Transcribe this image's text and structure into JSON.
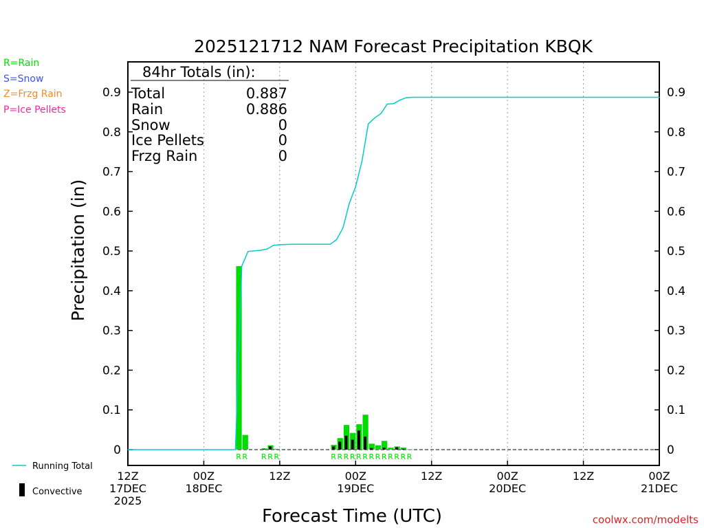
{
  "chart_data": {
    "type": "bar",
    "title": "2025121712 NAM Forecast Precipitation KBQK",
    "xlabel": "Forecast Time (UTC)",
    "ylabel": "Precipitation (in)",
    "ylim": [
      0,
      0.98
    ],
    "xlim_hours": [
      0,
      84
    ],
    "yticks": [
      0,
      0.1,
      0.2,
      0.3,
      0.4,
      0.5,
      0.6,
      0.7,
      0.8,
      0.9
    ],
    "ytick_labels": [
      "0",
      "0.1",
      "0.2",
      "0.3",
      "0.4",
      "0.5",
      "0.6",
      "0.7",
      "0.8",
      "0.9"
    ],
    "xticks": [
      {
        "hour": 0,
        "lines": [
          "12Z",
          "17DEC",
          "2025"
        ]
      },
      {
        "hour": 12,
        "lines": [
          "00Z",
          "18DEC"
        ]
      },
      {
        "hour": 24,
        "lines": [
          "12Z"
        ]
      },
      {
        "hour": 36,
        "lines": [
          "00Z",
          "19DEC"
        ]
      },
      {
        "hour": 48,
        "lines": [
          "12Z"
        ]
      },
      {
        "hour": 60,
        "lines": [
          "00Z",
          "20DEC"
        ]
      },
      {
        "hour": 72,
        "lines": [
          "12Z"
        ]
      },
      {
        "hour": 84,
        "lines": [
          "00Z",
          "21DEC"
        ]
      }
    ],
    "legend_ptypes": [
      {
        "label": "R=Rain",
        "color": "#00dc00"
      },
      {
        "label": "S=Snow",
        "color": "#3c50ff"
      },
      {
        "label": "Z=Frzg Rain",
        "color": "#f08c28"
      },
      {
        "label": "P=Ice Pellets",
        "color": "#f028a0"
      }
    ],
    "legend_lines": {
      "running_total": "Running Total",
      "convective": "Convective"
    },
    "totals": {
      "header": "84hr Totals (in):",
      "rows": [
        {
          "label": "Total",
          "value": "0.887"
        },
        {
          "label": "Rain",
          "value": "0.886"
        },
        {
          "label": "Snow",
          "value": "0"
        },
        {
          "label": "Ice Pellets",
          "value": "0"
        },
        {
          "label": "Frzg Rain",
          "value": "0"
        }
      ]
    },
    "series": [
      {
        "name": "Precipitation",
        "color": "#00dc00",
        "x_hours": [
          18,
          19,
          22,
          23,
          24,
          33,
          34,
          35,
          36,
          37,
          38,
          39,
          40,
          41,
          42,
          43,
          44,
          45
        ],
        "values": [
          0.462,
          0.037,
          0.003,
          0.011,
          0.002,
          0.012,
          0.029,
          0.062,
          0.042,
          0.064,
          0.088,
          0.015,
          0.011,
          0.022,
          0.005,
          0.008,
          0.005,
          0.001
        ],
        "ptype_labels": [
          "R",
          "R",
          "R",
          "R",
          "R",
          "R",
          "R",
          "R",
          "R",
          "R",
          "R",
          "R",
          "R",
          "R",
          "R",
          "R",
          "R",
          "R"
        ]
      },
      {
        "name": "Convective",
        "color": "#000000",
        "x_hours": [
          18,
          19,
          22,
          23,
          24,
          33,
          34,
          35,
          36,
          37,
          38,
          39,
          40,
          41,
          42,
          43,
          44,
          45
        ],
        "values": [
          0.0,
          0.0,
          0.002,
          0.008,
          0.0,
          0.008,
          0.02,
          0.035,
          0.025,
          0.048,
          0.033,
          0.004,
          0.0,
          0.005,
          0.0,
          0.006,
          0.002,
          0.0
        ]
      },
      {
        "name": "Running Total",
        "type": "line",
        "color": "#00cccc",
        "x_hours": [
          0,
          17,
          18,
          19,
          21,
          22,
          23,
          24,
          26,
          29,
          32,
          33,
          34,
          35,
          36,
          37,
          38,
          39,
          40,
          41,
          42,
          43,
          44,
          45,
          48,
          84
        ],
        "values": [
          0,
          0,
          0.462,
          0.499,
          0.502,
          0.505,
          0.514,
          0.516,
          0.517,
          0.517,
          0.517,
          0.529,
          0.558,
          0.62,
          0.662,
          0.726,
          0.82,
          0.835,
          0.846,
          0.87,
          0.871,
          0.88,
          0.886,
          0.887,
          0.887,
          0.887
        ]
      }
    ],
    "credit": "coolwx.com/modelts"
  }
}
